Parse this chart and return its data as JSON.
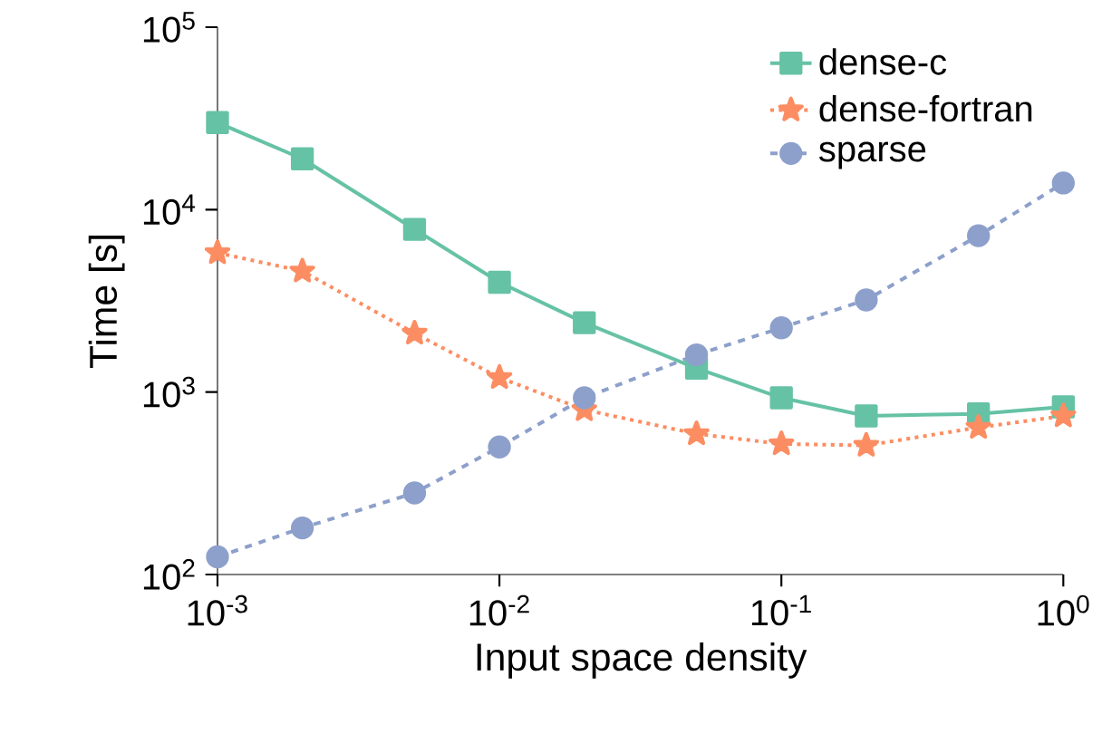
{
  "chart_data": {
    "type": "line",
    "xlabel": "Input space density",
    "ylabel": "Time [s]",
    "log": "xy",
    "legend": "top right",
    "grid": false,
    "x": [
      0.001,
      0.002,
      0.005,
      0.01,
      0.02,
      0.05,
      0.1,
      0.2,
      0.5,
      1
    ],
    "xlim": [
      0.001,
      1
    ],
    "xticks": [
      {
        "value": 0.001,
        "label": "10$^{-3}$"
      },
      {
        "value": 0.01,
        "label": "10$^{-2}$"
      },
      {
        "value": 0.1,
        "label": "10$^{-1}$"
      },
      {
        "value": 1,
        "label": "10$^{0}$"
      }
    ],
    "ylim": [
      100,
      100000
    ],
    "yticks": [
      {
        "value": 100,
        "label": "10$^{2}$"
      },
      {
        "value": 1000,
        "label": "10$^{3}$"
      },
      {
        "value": 10000,
        "label": "10$^{4}$"
      },
      {
        "value": 100000,
        "label": "10$^{5}$"
      }
    ],
    "series": [
      {
        "name": "dense-c",
        "color": "#66c2a5",
        "marker": "square",
        "line_style": "solid",
        "values": [
          30000,
          19000,
          7800,
          4000,
          2400,
          1350,
          930,
          740,
          760,
          830
        ]
      },
      {
        "name": "dense-fortran",
        "color": "#fc8d62",
        "marker": "star",
        "line_style": "dotted",
        "values": [
          5800,
          4600,
          2100,
          1200,
          800,
          590,
          520,
          510,
          640,
          740
        ]
      },
      {
        "name": "sparse",
        "color": "#8da0cb",
        "marker": "circle",
        "line_style": "dashed",
        "values": [
          125,
          180,
          280,
          500,
          930,
          1600,
          2250,
          3200,
          7200,
          14000
        ]
      }
    ]
  }
}
